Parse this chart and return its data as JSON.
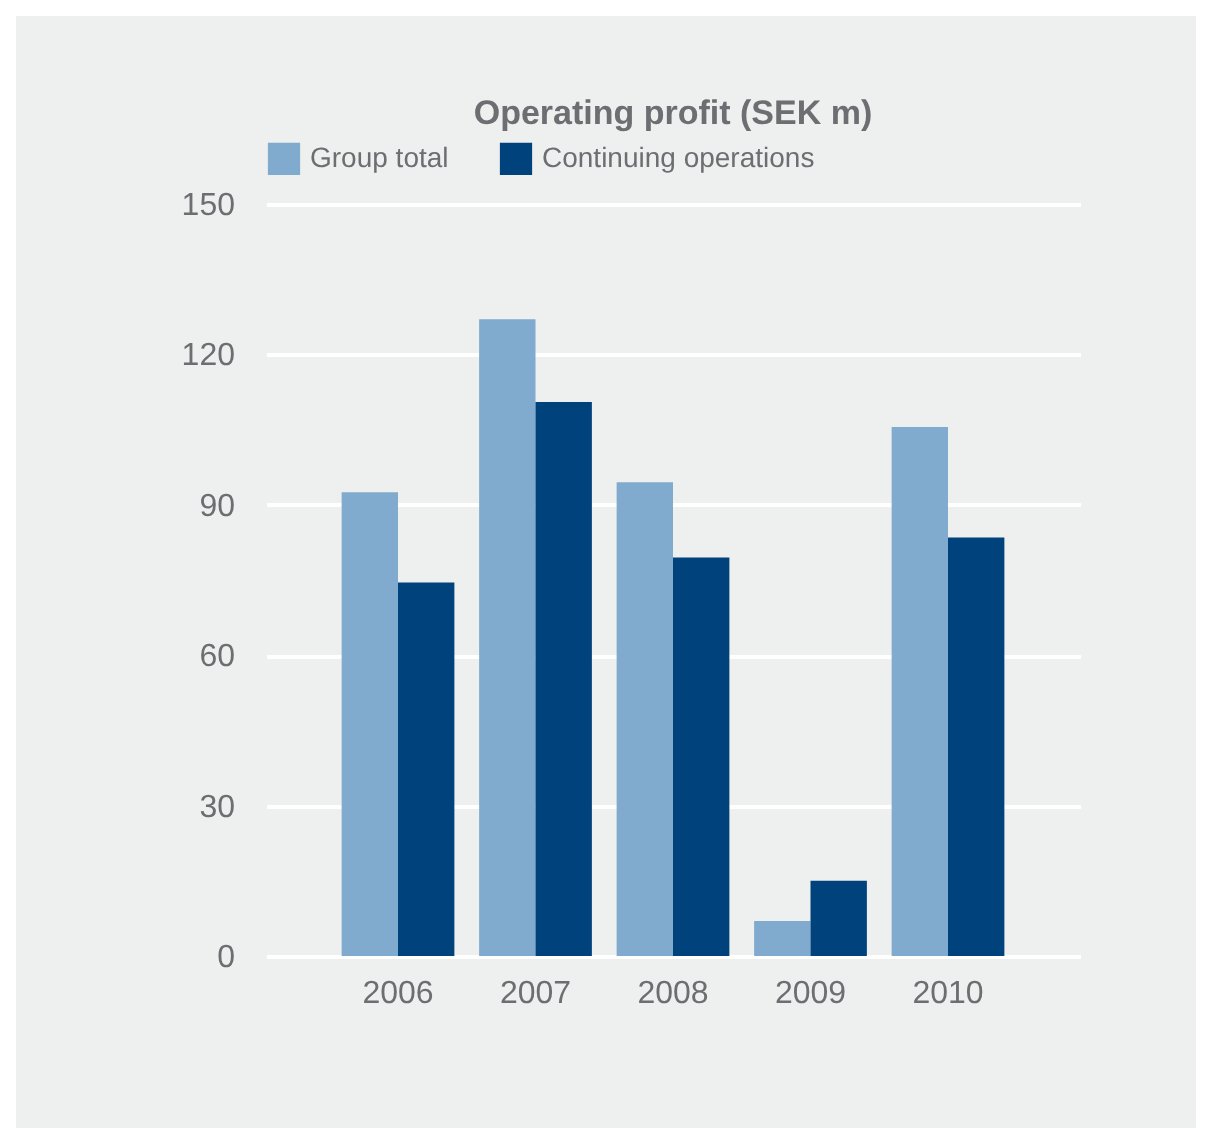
{
  "chart_data": {
    "type": "bar",
    "title": "Operating profit (SEK m)",
    "categories": [
      "2006",
      "2007",
      "2008",
      "2009",
      "2010"
    ],
    "series": [
      {
        "name": "Group total",
        "color": "#80abce",
        "values": [
          92.5,
          127,
          94.5,
          7,
          105.5
        ]
      },
      {
        "name": "Continuing operations",
        "color": "#00437c",
        "values": [
          74.5,
          110.5,
          79.5,
          15,
          83.5
        ]
      }
    ],
    "ylim": [
      0,
      150
    ],
    "yticks": [
      0,
      30,
      60,
      90,
      120,
      150
    ],
    "grid": "y",
    "legend": "top"
  }
}
